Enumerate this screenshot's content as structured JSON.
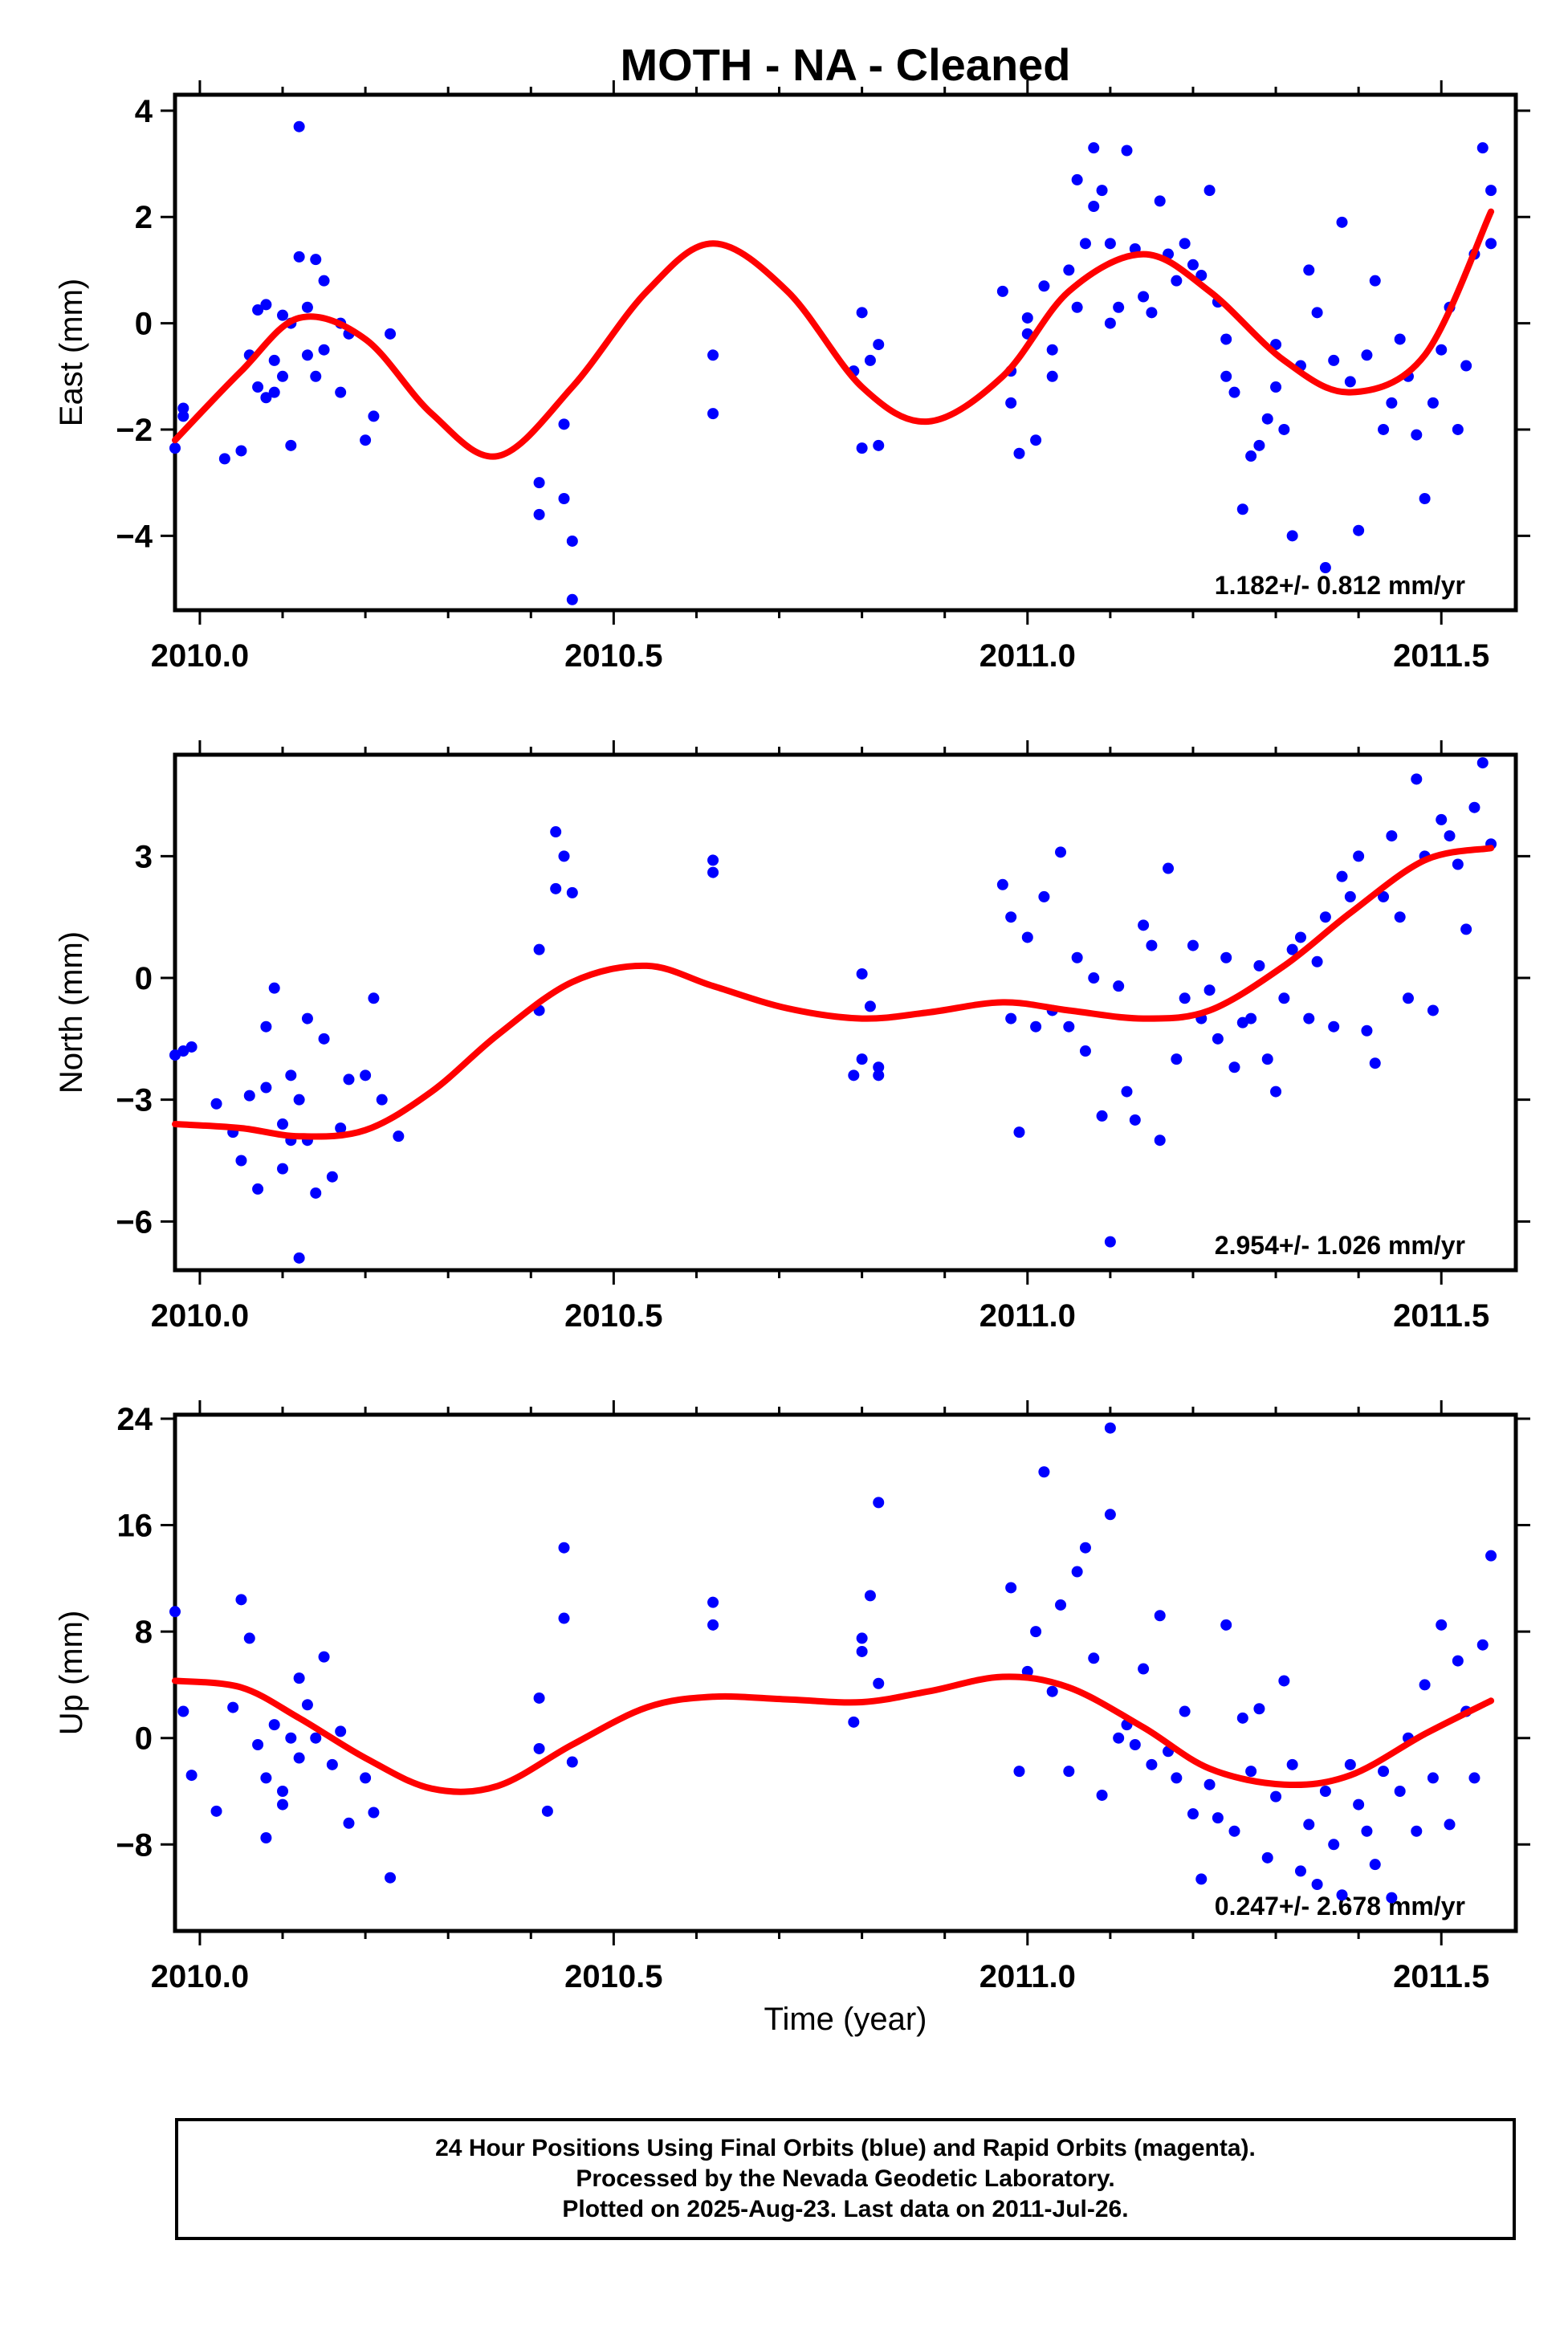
{
  "title": "MOTH  - NA - Cleaned",
  "colors": {
    "final_orbits": "#0000ff",
    "fit_line": "#ff0000",
    "frame": "#000000"
  },
  "xlabel": "Time (year)",
  "footer": {
    "line1": "24 Hour Positions Using Final Orbits (blue) and Rapid Orbits (magenta).",
    "line2": "Processed by the Nevada Geodetic Laboratory.",
    "line3": "Plotted on 2025-Aug-23. Last data on 2011-Jul-26."
  },
  "chart_data": [
    {
      "type": "scatter",
      "ylabel": "East (mm)",
      "rate_label": "1.182+/- 0.812 mm/yr",
      "xlim": [
        2009.97,
        2011.59
      ],
      "ylim": [
        -5.4,
        4.3
      ],
      "xticks": [
        2010.0,
        2010.5,
        2011.0,
        2011.5
      ],
      "xtick_labels": [
        "2010.0",
        "2010.5",
        "2011.0",
        "2011.5"
      ],
      "yticks": [
        -4,
        -2,
        0,
        2,
        4
      ],
      "ytick_labels": [
        "−4",
        "−2",
        "0",
        "2",
        "4"
      ],
      "series": [
        {
          "values_x": [
            2009.97,
            2009.98,
            2009.98,
            2010.03,
            2010.05,
            2010.06,
            2010.07,
            2010.07,
            2010.08,
            2010.08,
            2010.09,
            2010.09,
            2010.1,
            2010.1,
            2010.11,
            2010.11,
            2010.12,
            2010.12,
            2010.13,
            2010.13,
            2010.14,
            2010.14,
            2010.15,
            2010.15,
            2010.17,
            2010.17,
            2010.18,
            2010.2,
            2010.21,
            2010.23,
            2010.41,
            2010.41,
            2010.44,
            2010.44,
            2010.45,
            2010.45,
            2010.62,
            2010.62,
            2010.79,
            2010.8,
            2010.8,
            2010.81,
            2010.82,
            2010.82,
            2010.97,
            2010.98,
            2010.98,
            2010.99,
            2011.0,
            2011.0,
            2011.01,
            2011.02,
            2011.03,
            2011.03,
            2011.05,
            2011.06,
            2011.06,
            2011.07,
            2011.08,
            2011.08,
            2011.09,
            2011.1,
            2011.1,
            2011.11,
            2011.12,
            2011.13,
            2011.14,
            2011.15,
            2011.16,
            2011.17,
            2011.18,
            2011.19,
            2011.2,
            2011.21,
            2011.22,
            2011.23,
            2011.24,
            2011.24,
            2011.25,
            2011.26,
            2011.27,
            2011.28,
            2011.29,
            2011.3,
            2011.3,
            2011.31,
            2011.32,
            2011.33,
            2011.34,
            2011.35,
            2011.36,
            2011.37,
            2011.38,
            2011.39,
            2011.4,
            2011.41,
            2011.42,
            2011.43,
            2011.44,
            2011.45,
            2011.46,
            2011.47,
            2011.48,
            2011.49,
            2011.5,
            2011.51,
            2011.52,
            2011.53,
            2011.54,
            2011.55,
            2011.56,
            2011.56
          ],
          "values_y": [
            -2.35,
            -1.6,
            -1.75,
            -2.55,
            -2.4,
            -0.6,
            0.25,
            -1.2,
            0.35,
            -1.4,
            -1.3,
            -0.7,
            0.15,
            -1.0,
            -2.3,
            0.0,
            3.7,
            1.25,
            0.3,
            -0.6,
            -1.0,
            1.2,
            0.8,
            -0.5,
            0.0,
            -1.3,
            -0.2,
            -2.2,
            -1.75,
            -0.2,
            -3.0,
            -3.6,
            -3.3,
            -1.9,
            -5.2,
            -4.1,
            -0.6,
            -1.7,
            -0.9,
            -2.35,
            0.2,
            -0.7,
            -2.3,
            -0.4,
            0.6,
            -1.5,
            -0.9,
            -2.45,
            0.1,
            -0.2,
            -2.2,
            0.7,
            -0.5,
            -1.0,
            1.0,
            2.7,
            0.3,
            1.5,
            3.3,
            2.2,
            2.5,
            1.5,
            0.0,
            0.3,
            3.25,
            1.4,
            0.5,
            0.2,
            2.3,
            1.3,
            0.8,
            1.5,
            1.1,
            0.9,
            2.5,
            0.4,
            -0.3,
            -1.0,
            -1.3,
            -3.5,
            -2.5,
            -2.3,
            -1.8,
            -1.2,
            -0.4,
            -2.0,
            -4.0,
            -0.8,
            1.0,
            0.2,
            -4.6,
            -0.7,
            1.9,
            -1.1,
            -3.9,
            -0.6,
            0.8,
            -2.0,
            -1.5,
            -0.3,
            -1.0,
            -2.1,
            -3.3,
            -1.5,
            -0.5,
            0.3,
            -2.0,
            -0.8,
            1.3,
            3.3,
            2.5,
            1.5
          ]
        }
      ],
      "fit": {
        "x": [
          2009.97,
          2010.05,
          2010.12,
          2010.2,
          2010.28,
          2010.36,
          2010.45,
          2010.54,
          2010.62,
          2010.71,
          2010.8,
          2010.88,
          2010.97,
          2011.05,
          2011.14,
          2011.22,
          2011.31,
          2011.39,
          2011.48,
          2011.56
        ],
        "y": [
          -2.2,
          -0.9,
          0.1,
          -0.3,
          -1.7,
          -2.5,
          -1.2,
          0.6,
          1.5,
          0.6,
          -1.2,
          -1.85,
          -1.0,
          0.6,
          1.3,
          0.6,
          -0.7,
          -1.3,
          -0.6,
          2.1
        ]
      }
    },
    {
      "type": "scatter",
      "ylabel": "North (mm)",
      "rate_label": "2.954+/- 1.026 mm/yr",
      "xlim": [
        2009.97,
        2011.59
      ],
      "ylim": [
        -7.2,
        5.5
      ],
      "xticks": [
        2010.0,
        2010.5,
        2011.0,
        2011.5
      ],
      "xtick_labels": [
        "2010.0",
        "2010.5",
        "2011.0",
        "2011.5"
      ],
      "yticks": [
        -6,
        -3,
        0,
        3
      ],
      "ytick_labels": [
        "−6",
        "−3",
        "0",
        "3"
      ],
      "series": [
        {
          "values_x": [
            2009.97,
            2009.98,
            2009.99,
            2010.02,
            2010.04,
            2010.05,
            2010.06,
            2010.07,
            2010.08,
            2010.08,
            2010.09,
            2010.1,
            2010.1,
            2010.11,
            2010.11,
            2010.12,
            2010.12,
            2010.13,
            2010.13,
            2010.14,
            2010.15,
            2010.16,
            2010.17,
            2010.18,
            2010.2,
            2010.21,
            2010.22,
            2010.24,
            2010.41,
            2010.41,
            2010.43,
            2010.43,
            2010.44,
            2010.45,
            2010.62,
            2010.62,
            2010.79,
            2010.8,
            2010.8,
            2010.81,
            2010.82,
            2010.82,
            2010.97,
            2010.98,
            2010.98,
            2010.99,
            2011.0,
            2011.01,
            2011.02,
            2011.03,
            2011.04,
            2011.05,
            2011.06,
            2011.07,
            2011.08,
            2011.09,
            2011.1,
            2011.11,
            2011.12,
            2011.13,
            2011.14,
            2011.15,
            2011.16,
            2011.17,
            2011.18,
            2011.19,
            2011.2,
            2011.21,
            2011.22,
            2011.23,
            2011.24,
            2011.25,
            2011.26,
            2011.27,
            2011.28,
            2011.29,
            2011.3,
            2011.31,
            2011.32,
            2011.33,
            2011.34,
            2011.35,
            2011.36,
            2011.37,
            2011.38,
            2011.39,
            2011.4,
            2011.41,
            2011.42,
            2011.43,
            2011.44,
            2011.45,
            2011.46,
            2011.47,
            2011.48,
            2011.49,
            2011.5,
            2011.51,
            2011.52,
            2011.53,
            2011.54,
            2011.55,
            2011.56
          ],
          "values_y": [
            -1.9,
            -1.8,
            -1.7,
            -3.1,
            -3.8,
            -4.5,
            -2.9,
            -5.2,
            -2.7,
            -1.2,
            -0.25,
            -3.6,
            -4.7,
            -2.4,
            -4.0,
            -3.0,
            -6.9,
            -4.0,
            -1.0,
            -5.3,
            -1.5,
            -4.9,
            -3.7,
            -2.5,
            -2.4,
            -0.5,
            -3.0,
            -3.9,
            0.7,
            -0.8,
            2.2,
            3.6,
            3.0,
            2.1,
            2.9,
            2.6,
            -2.4,
            0.1,
            -2.0,
            -0.7,
            -2.2,
            -2.4,
            2.3,
            1.5,
            -1.0,
            -3.8,
            1.0,
            -1.2,
            2.0,
            -0.8,
            3.1,
            -1.2,
            0.5,
            -1.8,
            0.0,
            -3.4,
            -6.5,
            -0.2,
            -2.8,
            -3.5,
            1.3,
            0.8,
            -4.0,
            2.7,
            -2.0,
            -0.5,
            0.8,
            -1.0,
            -0.3,
            -1.5,
            0.5,
            -2.2,
            -1.1,
            -1.0,
            0.3,
            -2.0,
            -2.8,
            -0.5,
            0.7,
            1.0,
            -1.0,
            0.4,
            1.5,
            -1.2,
            2.5,
            2.0,
            3.0,
            -1.3,
            -2.1,
            2.0,
            3.5,
            1.5,
            -0.5,
            4.9,
            3.0,
            -0.8,
            3.9,
            3.5,
            2.8,
            1.2,
            4.2,
            5.3,
            3.3
          ]
        }
      ],
      "fit": {
        "x": [
          2009.97,
          2010.05,
          2010.12,
          2010.2,
          2010.28,
          2010.36,
          2010.45,
          2010.54,
          2010.62,
          2010.71,
          2010.8,
          2010.88,
          2010.97,
          2011.05,
          2011.14,
          2011.22,
          2011.31,
          2011.39,
          2011.48,
          2011.56
        ],
        "y": [
          -3.6,
          -3.7,
          -3.9,
          -3.75,
          -2.8,
          -1.4,
          -0.1,
          0.3,
          -0.2,
          -0.75,
          -1.0,
          -0.85,
          -0.6,
          -0.8,
          -1.0,
          -0.8,
          0.3,
          1.6,
          2.9,
          3.2
        ]
      }
    },
    {
      "type": "scatter",
      "ylabel": "Up (mm)",
      "rate_label": "0.247+/- 2.678 mm/yr",
      "xlim": [
        2009.97,
        2011.59
      ],
      "ylim": [
        -14.5,
        24.3
      ],
      "xticks": [
        2010.0,
        2010.5,
        2011.0,
        2011.5
      ],
      "xtick_labels": [
        "2010.0",
        "2010.5",
        "2011.0",
        "2011.5"
      ],
      "yticks": [
        -8,
        0,
        8,
        16,
        24
      ],
      "ytick_labels": [
        "−8",
        "0",
        "8",
        "16",
        "24"
      ],
      "series": [
        {
          "values_x": [
            2009.97,
            2009.98,
            2009.99,
            2010.02,
            2010.04,
            2010.05,
            2010.06,
            2010.07,
            2010.08,
            2010.08,
            2010.09,
            2010.1,
            2010.1,
            2010.11,
            2010.12,
            2010.12,
            2010.13,
            2010.14,
            2010.15,
            2010.16,
            2010.17,
            2010.18,
            2010.2,
            2010.21,
            2010.23,
            2010.41,
            2010.41,
            2010.42,
            2010.44,
            2010.44,
            2010.45,
            2010.62,
            2010.62,
            2010.79,
            2010.8,
            2010.8,
            2010.81,
            2010.82,
            2010.82,
            2010.98,
            2010.99,
            2011.0,
            2011.01,
            2011.02,
            2011.03,
            2011.04,
            2011.05,
            2011.06,
            2011.07,
            2011.08,
            2011.09,
            2011.1,
            2011.1,
            2011.11,
            2011.12,
            2011.13,
            2011.14,
            2011.15,
            2011.16,
            2011.17,
            2011.18,
            2011.19,
            2011.2,
            2011.21,
            2011.22,
            2011.23,
            2011.24,
            2011.25,
            2011.26,
            2011.27,
            2011.28,
            2011.29,
            2011.3,
            2011.31,
            2011.32,
            2011.33,
            2011.34,
            2011.35,
            2011.36,
            2011.37,
            2011.38,
            2011.39,
            2011.4,
            2011.41,
            2011.42,
            2011.43,
            2011.44,
            2011.45,
            2011.46,
            2011.47,
            2011.48,
            2011.49,
            2011.5,
            2011.51,
            2011.52,
            2011.53,
            2011.54,
            2011.55,
            2011.56
          ],
          "values_y": [
            9.5,
            2.0,
            -2.8,
            -5.5,
            2.3,
            10.4,
            7.5,
            -0.5,
            -3.0,
            -7.5,
            1.0,
            -4.0,
            -5.0,
            0.0,
            4.5,
            -1.5,
            2.5,
            0.0,
            6.1,
            -2.0,
            0.5,
            -6.4,
            -3.0,
            -5.6,
            -10.5,
            3.0,
            -0.8,
            -5.5,
            14.3,
            9.0,
            -1.8,
            10.2,
            8.5,
            1.2,
            6.5,
            7.5,
            10.7,
            17.7,
            4.1,
            11.3,
            -2.5,
            5.0,
            8.0,
            20.0,
            3.5,
            10.0,
            -2.5,
            12.5,
            14.3,
            6.0,
            -4.3,
            16.8,
            23.3,
            0.0,
            1.0,
            -0.5,
            5.2,
            -2.0,
            9.2,
            -1.0,
            -3.0,
            2.0,
            -5.7,
            -10.6,
            -3.5,
            -6.0,
            8.5,
            -7.0,
            1.5,
            -2.5,
            2.2,
            -9.0,
            -4.4,
            4.3,
            -2.0,
            -10.0,
            -6.5,
            -11.0,
            -4.0,
            -8.0,
            -11.8,
            -2.0,
            -5.0,
            -7.0,
            -9.5,
            -2.5,
            -12.0,
            -4.0,
            0.0,
            -7.0,
            4.0,
            -3.0,
            8.5,
            -6.5,
            5.8,
            2.0,
            -3.0,
            7.0,
            13.7
          ]
        }
      ],
      "fit": {
        "x": [
          2009.97,
          2010.05,
          2010.12,
          2010.2,
          2010.28,
          2010.36,
          2010.45,
          2010.54,
          2010.62,
          2010.71,
          2010.8,
          2010.88,
          2010.97,
          2011.05,
          2011.14,
          2011.22,
          2011.31,
          2011.39,
          2011.48,
          2011.56
        ],
        "y": [
          4.3,
          3.8,
          1.5,
          -1.5,
          -3.8,
          -3.6,
          -0.5,
          2.3,
          3.1,
          2.9,
          2.7,
          3.5,
          4.6,
          3.8,
          0.8,
          -2.3,
          -3.5,
          -2.8,
          0.3,
          2.8
        ]
      }
    }
  ]
}
